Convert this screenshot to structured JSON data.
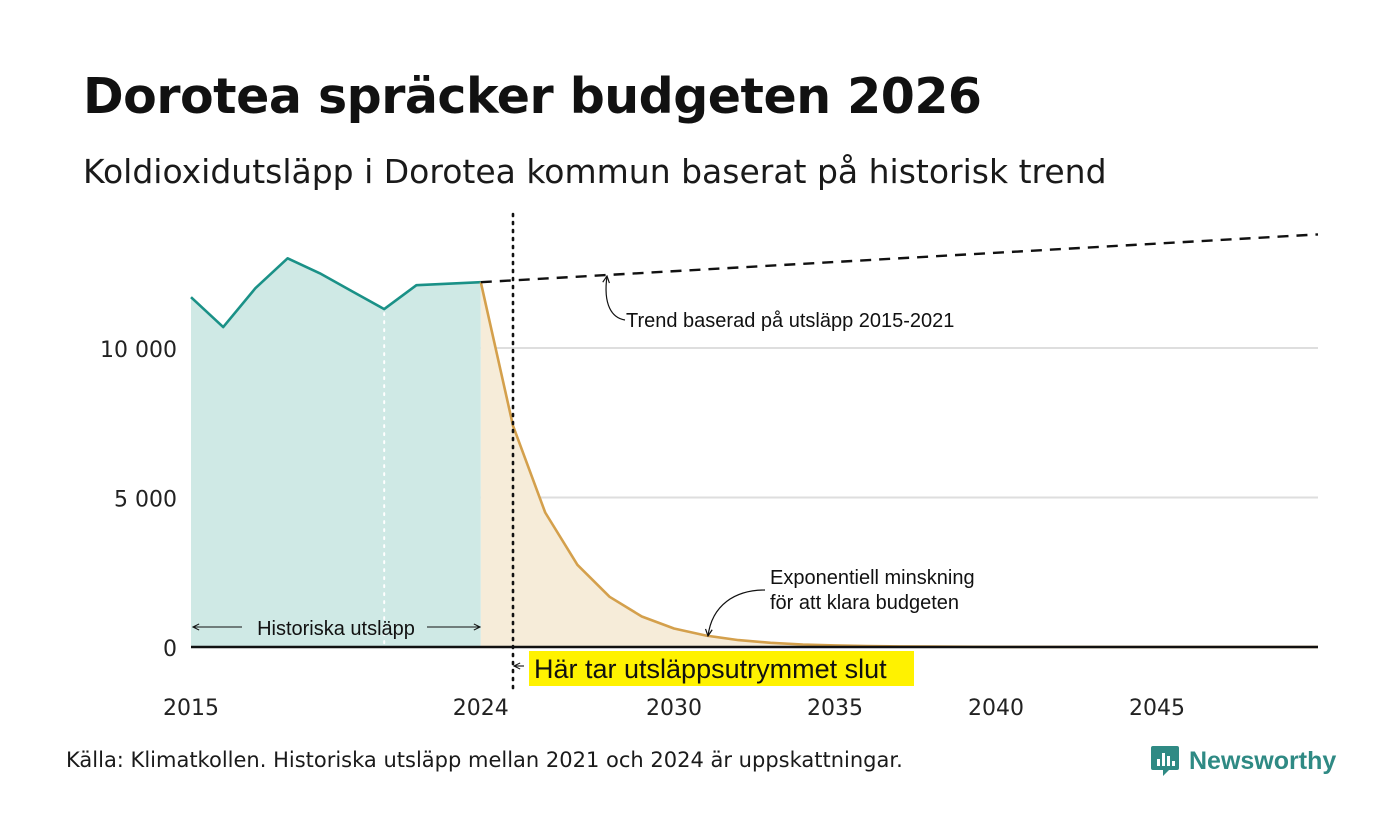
{
  "title": "Dorotea spräcker budgeten 2026",
  "subtitle": "Koldioxidutsläpp i Dorotea kommun baserat på historisk trend",
  "source": "Källa: Klimatkollen. Historiska utsläpp mellan 2021 och 2024 är uppskattningar.",
  "brand": {
    "name": "Newsworthy",
    "icon": "newsworthy-logo-icon"
  },
  "chart_data": {
    "type": "area",
    "title": "Dorotea spräcker budgeten 2026",
    "xlabel": "",
    "ylabel": "",
    "xlim": [
      2015,
      2050
    ],
    "ylim": [
      0,
      13800
    ],
    "grid": true,
    "x_ticks": [
      {
        "value": 2015,
        "label": "2015"
      },
      {
        "value": 2024,
        "label": "2024"
      },
      {
        "value": 2030,
        "label": "2030"
      },
      {
        "value": 2035,
        "label": "2035"
      },
      {
        "value": 2040,
        "label": "2040"
      },
      {
        "value": 2045,
        "label": "2045"
      }
    ],
    "y_ticks": [
      {
        "value": 0,
        "label": "0"
      },
      {
        "value": 5000,
        "label": "5 000"
      },
      {
        "value": 10000,
        "label": "10 000"
      }
    ],
    "series": [
      {
        "name": "Historiska utsläpp",
        "style": "solid-area",
        "color": "#1a9187",
        "fill": "#cfe9e5",
        "x": [
          2015,
          2016,
          2017,
          2018,
          2019,
          2020,
          2021,
          2022,
          2023,
          2024
        ],
        "values": [
          11700,
          10700,
          12000,
          13000,
          12500,
          11900,
          11300,
          12100,
          12150,
          12200
        ]
      },
      {
        "name": "Exponentiell minskning",
        "style": "solid-area",
        "color": "#d4a04c",
        "fill": "#f6ecd9",
        "x": [
          2024,
          2025,
          2026,
          2027,
          2028,
          2029,
          2030,
          2031,
          2032,
          2033,
          2034,
          2035,
          2036,
          2037,
          2038,
          2040,
          2045,
          2050
        ],
        "values": [
          12200,
          7400,
          4500,
          2750,
          1680,
          1020,
          620,
          380,
          230,
          140,
          85,
          52,
          32,
          20,
          12,
          5,
          1,
          0
        ]
      },
      {
        "name": "Trend",
        "style": "dashed",
        "color": "#111111",
        "x": [
          2024,
          2050
        ],
        "values": [
          12200,
          13800
        ]
      }
    ],
    "markers": [
      {
        "type": "vline-dotted",
        "x": 2025,
        "color": "#111111"
      },
      {
        "type": "vline-dotted",
        "x": 2021,
        "color": "#ffffff"
      }
    ],
    "annotations": {
      "trend": "Trend baserad på utsläpp 2015-2021",
      "decline_line1": "Exponentiell minskning",
      "decline_line2": "för att klara budgeten",
      "historical": "Historiska utsläpp",
      "budget_end": "Här tar utsläppsutrymmet slut",
      "highlight_color": "#fff200"
    }
  }
}
